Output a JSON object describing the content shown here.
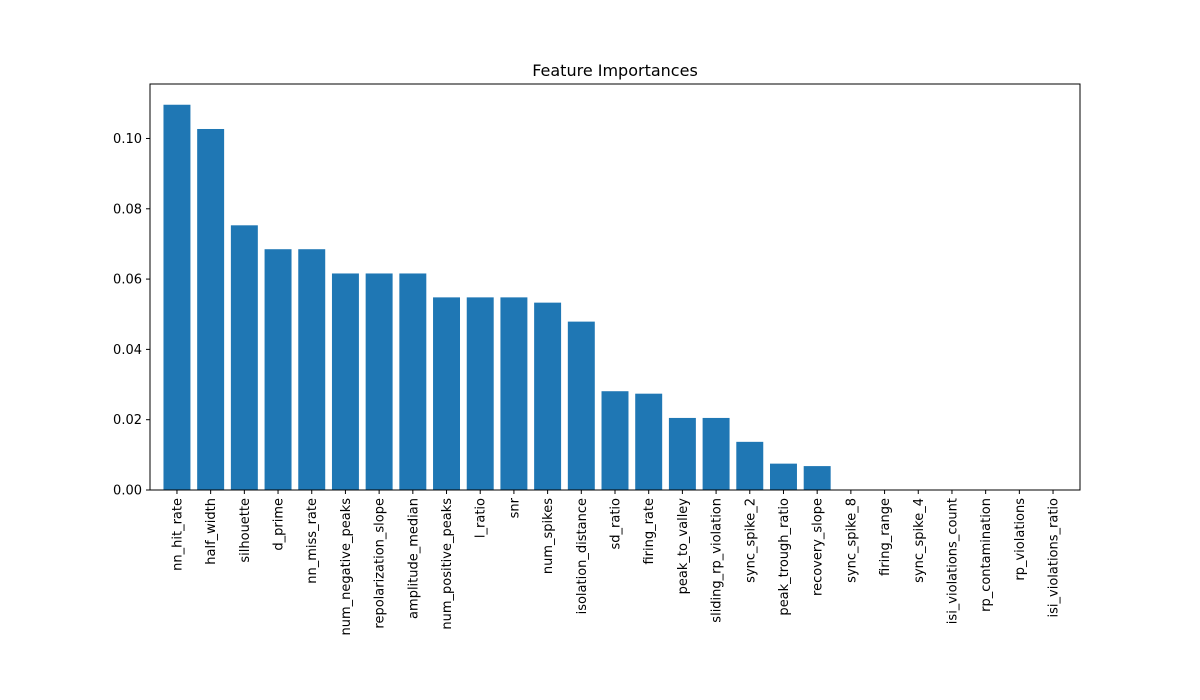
{
  "chart_data": {
    "type": "bar",
    "title": "Feature Importances",
    "xlabel": "",
    "ylabel": "",
    "bar_color": "#1f77b4",
    "ylim": [
      0,
      0.1155
    ],
    "yticks": [
      0,
      0.02,
      0.04,
      0.06,
      0.08,
      0.1
    ],
    "ytick_labels": [
      "0.00",
      "0.02",
      "0.04",
      "0.06",
      "0.08",
      "0.10"
    ],
    "grid": false,
    "categories": [
      "nn_hit_rate",
      "half_width",
      "silhouette",
      "d_prime",
      "nn_miss_rate",
      "num_negative_peaks",
      "repolarization_slope",
      "amplitude_median",
      "num_positive_peaks",
      "l_ratio",
      "snr",
      "num_spikes",
      "isolation_distance",
      "sd_ratio",
      "firing_rate",
      "peak_to_valley",
      "sliding_rp_violation",
      "sync_spike_2",
      "peak_trough_ratio",
      "recovery_slope",
      "sync_spike_8",
      "firing_range",
      "sync_spike_4",
      "isi_violations_count",
      "rp_contamination",
      "rp_violations",
      "isi_violations_ratio"
    ],
    "values": [
      0.1096,
      0.1027,
      0.0753,
      0.0685,
      0.0685,
      0.0616,
      0.0616,
      0.0616,
      0.0548,
      0.0548,
      0.0548,
      0.0533,
      0.0479,
      0.0281,
      0.0274,
      0.0205,
      0.0205,
      0.0137,
      0.0075,
      0.0068,
      0.0,
      0.0,
      0.0,
      0.0,
      0.0,
      0.0,
      0.0
    ]
  }
}
